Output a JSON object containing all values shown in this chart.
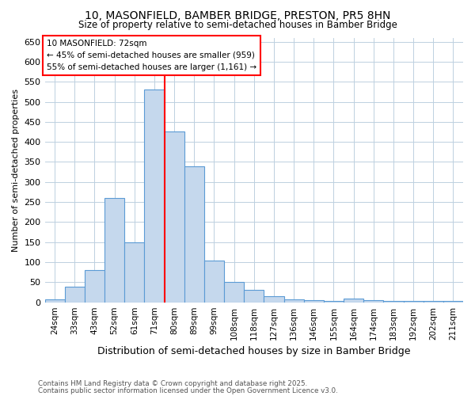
{
  "title1": "10, MASONFIELD, BAMBER BRIDGE, PRESTON, PR5 8HN",
  "title2": "Size of property relative to semi-detached houses in Bamber Bridge",
  "xlabel": "Distribution of semi-detached houses by size in Bamber Bridge",
  "ylabel": "Number of semi-detached properties",
  "categories": [
    "24sqm",
    "33sqm",
    "43sqm",
    "52sqm",
    "61sqm",
    "71sqm",
    "80sqm",
    "89sqm",
    "99sqm",
    "108sqm",
    "118sqm",
    "127sqm",
    "136sqm",
    "146sqm",
    "155sqm",
    "164sqm",
    "174sqm",
    "183sqm",
    "192sqm",
    "202sqm",
    "211sqm"
  ],
  "values": [
    8,
    38,
    80,
    260,
    150,
    530,
    425,
    340,
    105,
    50,
    30,
    15,
    8,
    5,
    3,
    10,
    5,
    3,
    3,
    3,
    3
  ],
  "bar_color": "#c5d8ed",
  "bar_edge_color": "#5b9bd5",
  "vline_after_index": 5,
  "vline_color": "red",
  "annotation_title": "10 MASONFIELD: 72sqm",
  "annotation_line1": "← 45% of semi-detached houses are smaller (959)",
  "annotation_line2": "55% of semi-detached houses are larger (1,161) →",
  "ylim": [
    0,
    660
  ],
  "yticks": [
    0,
    50,
    100,
    150,
    200,
    250,
    300,
    350,
    400,
    450,
    500,
    550,
    600,
    650
  ],
  "footnote1": "Contains HM Land Registry data © Crown copyright and database right 2025.",
  "footnote2": "Contains public sector information licensed under the Open Government Licence v3.0.",
  "bg_color": "#ffffff",
  "grid_color": "#bdd0e0"
}
